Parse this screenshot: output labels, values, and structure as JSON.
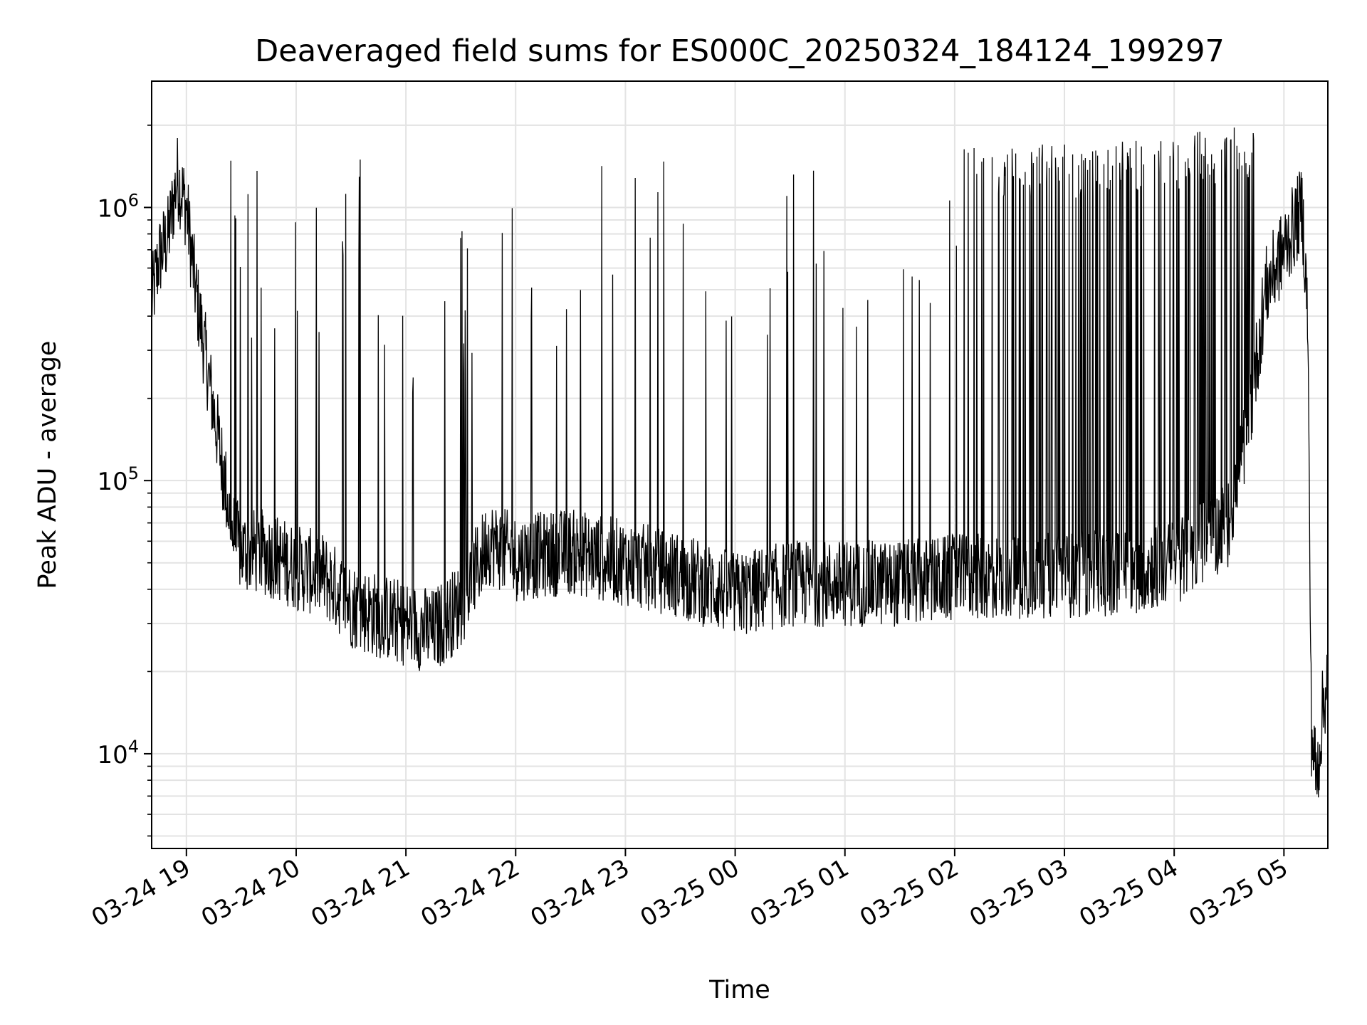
{
  "chart_data": {
    "type": "line",
    "title": "Deaveraged field sums for ES000C_20250324_184124_199297",
    "xlabel": "Time",
    "ylabel": "Peak ADU - average",
    "yscale": "log",
    "xlim": [
      "2025-03-24 18:41",
      "2025-03-25 05:24"
    ],
    "ylim": [
      4500,
      2900000
    ],
    "grid": true,
    "line_color": "#000000",
    "xticks": [
      {
        "t": "2025-03-24 19:00",
        "label": "03-24 19"
      },
      {
        "t": "2025-03-24 20:00",
        "label": "03-24 20"
      },
      {
        "t": "2025-03-24 21:00",
        "label": "03-24 21"
      },
      {
        "t": "2025-03-24 22:00",
        "label": "03-24 22"
      },
      {
        "t": "2025-03-24 23:00",
        "label": "03-24 23"
      },
      {
        "t": "2025-03-25 00:00",
        "label": "03-25 00"
      },
      {
        "t": "2025-03-25 01:00",
        "label": "03-25 01"
      },
      {
        "t": "2025-03-25 02:00",
        "label": "03-25 02"
      },
      {
        "t": "2025-03-25 03:00",
        "label": "03-25 03"
      },
      {
        "t": "2025-03-25 04:00",
        "label": "03-25 04"
      },
      {
        "t": "2025-03-25 05:00",
        "label": "03-25 05"
      }
    ],
    "yticks": [
      {
        "value": 10000,
        "base": "10",
        "exp": "4"
      },
      {
        "value": 100000,
        "base": "10",
        "exp": "5"
      },
      {
        "value": 1000000,
        "base": "10",
        "exp": "6"
      }
    ],
    "series": [
      {
        "points": [
          [
            "2025-03-24 18:41",
            450000
          ],
          [
            "2025-03-24 18:45",
            650000
          ],
          [
            "2025-03-24 18:50",
            780000
          ],
          [
            "2025-03-24 18:55",
            1300000
          ],
          [
            "2025-03-24 19:00",
            1000000
          ],
          [
            "2025-03-24 19:05",
            500000
          ],
          [
            "2025-03-24 19:10",
            300000
          ],
          [
            "2025-03-24 19:15",
            180000
          ],
          [
            "2025-03-24 19:20",
            110000
          ],
          [
            "2025-03-24 19:25",
            65000
          ],
          [
            "2025-03-24 19:30",
            55000
          ],
          [
            "2025-03-24 19:40",
            55000
          ],
          [
            "2025-03-24 19:50",
            52000
          ],
          [
            "2025-03-24 20:00",
            48000
          ],
          [
            "2025-03-24 20:15",
            45000
          ],
          [
            "2025-03-24 20:30",
            35000
          ],
          [
            "2025-03-24 20:45",
            32000
          ],
          [
            "2025-03-24 21:00",
            30000
          ],
          [
            "2025-03-24 21:15",
            28000
          ],
          [
            "2025-03-24 21:30",
            35000
          ],
          [
            "2025-03-24 21:45",
            60000
          ],
          [
            "2025-03-24 22:00",
            52000
          ],
          [
            "2025-03-24 22:30",
            55000
          ],
          [
            "2025-03-24 23:00",
            50000
          ],
          [
            "2025-03-24 23:30",
            45000
          ],
          [
            "2025-03-25 00:00",
            38000
          ],
          [
            "2025-03-25 00:30",
            42000
          ],
          [
            "2025-03-25 01:00",
            42000
          ],
          [
            "2025-03-25 01:30",
            42000
          ],
          [
            "2025-03-25 02:00",
            44000
          ],
          [
            "2025-03-25 02:30",
            45000
          ],
          [
            "2025-03-25 03:00",
            45000
          ],
          [
            "2025-03-25 03:30",
            46000
          ],
          [
            "2025-03-25 04:00",
            50000
          ],
          [
            "2025-03-25 04:30",
            70000
          ],
          [
            "2025-03-25 04:40",
            150000
          ],
          [
            "2025-03-25 04:50",
            500000
          ],
          [
            "2025-03-25 05:00",
            700000
          ],
          [
            "2025-03-25 05:10",
            1000000
          ],
          [
            "2025-03-25 05:13",
            400000
          ],
          [
            "2025-03-25 05:15",
            12000
          ],
          [
            "2025-03-25 05:18",
            8000
          ],
          [
            "2025-03-25 05:21",
            14000
          ],
          [
            "2025-03-25 05:24",
            20000
          ]
        ],
        "peaks": [
          [
            "2025-03-24 19:20",
            1900000
          ],
          [
            "2025-03-24 19:39",
            1600000
          ],
          [
            "2025-03-24 19:45",
            1300000
          ],
          [
            "2025-03-24 19:49",
            1600000
          ],
          [
            "2025-03-24 20:16",
            1650000
          ],
          [
            "2025-03-24 20:29",
            1600000
          ],
          [
            "2025-03-24 20:46",
            1400000
          ],
          [
            "2025-03-24 21:20",
            650000
          ],
          [
            "2025-03-24 21:47",
            1350000
          ],
          [
            "2025-03-24 22:33",
            1250000
          ],
          [
            "2025-03-24 22:57",
            1650000
          ],
          [
            "2025-03-24 23:48",
            1600000
          ],
          [
            "2025-03-25 00:25",
            1600000
          ],
          [
            "2025-03-25 01:10",
            1600000
          ],
          [
            "2025-03-25 01:40",
            1600000
          ],
          [
            "2025-03-25 02:15",
            1700000
          ],
          [
            "2025-03-25 02:45",
            1700000
          ],
          [
            "2025-03-25 03:15",
            1700000
          ],
          [
            "2025-03-25 03:45",
            1800000
          ],
          [
            "2025-03-25 04:15",
            1900000
          ],
          [
            "2025-03-25 04:58",
            2150000
          ]
        ]
      }
    ]
  }
}
